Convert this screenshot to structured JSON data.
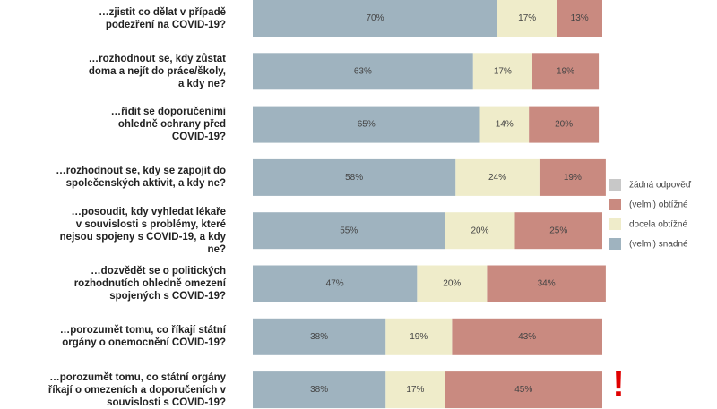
{
  "chart_data": {
    "type": "stacked-barh",
    "categories": [
      "…zjistit co dělat v případě\npodezření na COVID-19?",
      "…rozhodnout se, kdy zůstat\ndoma a nejít do práce/školy,\na kdy ne?",
      "…řídit se doporučeními\nohledně ochrany před\nCOVID-19?",
      "…rozhodnout se, kdy se zapojit do\nspolečenských aktivit, a kdy ne?",
      "…posoudit, kdy vyhledat lékaře\nv souvislosti s problémy, které\nnejsou spojeny s COVID-19, a kdy\nne?",
      "…dozvědět se o politických\nrozhodnutích ohledně omezení\nspojených s COVID-19?",
      "…porozumět tomu, co říkají státní\norgány o onemocnění COVID-19?",
      "…porozumět tomu, co státní orgány\nříkají o omezeních a doporučeních v\nsouvislosti s COVID-19?"
    ],
    "series": [
      {
        "name": "(velmi) snadné",
        "color": "#9fb3bf",
        "values": [
          70,
          63,
          65,
          58,
          55,
          47,
          38,
          38
        ],
        "value_labels": [
          "70%",
          "63%",
          "65%",
          "58%",
          "55%",
          "47%",
          "38%",
          "38%"
        ]
      },
      {
        "name": "docela obtížné",
        "color": "#efecca",
        "values": [
          17,
          17,
          14,
          24,
          20,
          20,
          19,
          17
        ],
        "value_labels": [
          "17%",
          "17%",
          "14%",
          "24%",
          "20%",
          "20%",
          "19%",
          "17%"
        ]
      },
      {
        "name": "(velmi) obtížné",
        "color": "#c98a80",
        "values": [
          13,
          19,
          20,
          19,
          25,
          34,
          43,
          45
        ],
        "value_labels": [
          "13%",
          "19%",
          "20%",
          "19%",
          "25%",
          "34%",
          "43%",
          "45%"
        ]
      },
      {
        "name": "žádná odpověď",
        "color": "#c8c8c8",
        "values": [
          null,
          null,
          null,
          null,
          null,
          null,
          null,
          null
        ]
      }
    ],
    "annotation": "!"
  }
}
